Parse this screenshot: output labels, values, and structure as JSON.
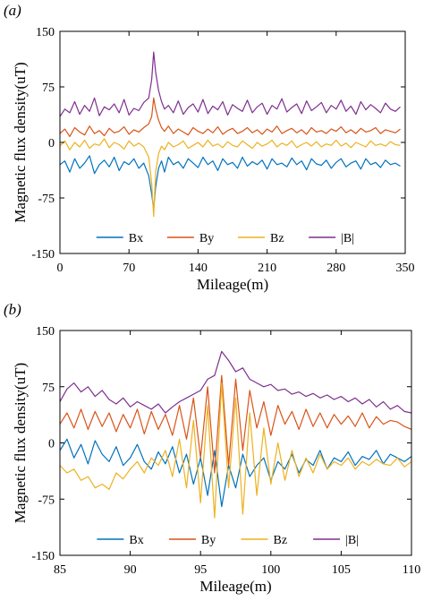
{
  "chart_data": [
    {
      "type": "line",
      "panel_label": "(a)",
      "xlabel": "Mileage(m)",
      "ylabel": "Magnetic flux density(uT)",
      "xlim": [
        0,
        350
      ],
      "ylim": [
        -150,
        150
      ],
      "xticks": [
        0,
        70,
        140,
        210,
        280,
        350
      ],
      "yticks": [
        150,
        75,
        0,
        -75,
        -150
      ],
      "grid": false,
      "legend_position": "bottom-center",
      "series": [
        {
          "name": "Bx",
          "color": "#0072BD",
          "x": [
            0,
            5,
            10,
            15,
            20,
            25,
            30,
            35,
            40,
            45,
            50,
            55,
            60,
            65,
            70,
            75,
            80,
            85,
            90,
            93,
            95,
            97,
            100,
            103,
            106,
            110,
            115,
            120,
            125,
            130,
            135,
            140,
            145,
            150,
            155,
            160,
            165,
            170,
            175,
            180,
            185,
            190,
            195,
            200,
            205,
            210,
            215,
            220,
            225,
            230,
            235,
            240,
            245,
            250,
            255,
            260,
            265,
            270,
            275,
            280,
            285,
            290,
            295,
            300,
            305,
            310,
            315,
            320,
            325,
            330,
            335,
            340,
            345
          ],
          "y": [
            -30,
            -25,
            -40,
            -22,
            -35,
            -28,
            -18,
            -42,
            -30,
            -24,
            -33,
            -20,
            -38,
            -26,
            -30,
            -22,
            -35,
            -28,
            -45,
            -70,
            -90,
            -60,
            -35,
            -25,
            -40,
            -20,
            -30,
            -26,
            -35,
            -22,
            -28,
            -34,
            -20,
            -30,
            -25,
            -38,
            -22,
            -30,
            -27,
            -35,
            -20,
            -32,
            -26,
            -30,
            -24,
            -36,
            -22,
            -30,
            -28,
            -33,
            -21,
            -30,
            -25,
            -37,
            -22,
            -29,
            -31,
            -24,
            -35,
            -27,
            -22,
            -33,
            -28,
            -25,
            -36,
            -22,
            -30,
            -27,
            -34,
            -24,
            -30,
            -28,
            -32
          ]
        },
        {
          "name": "By",
          "color": "#D95319",
          "x": [
            0,
            5,
            10,
            15,
            20,
            25,
            30,
            35,
            40,
            45,
            50,
            55,
            60,
            65,
            70,
            75,
            80,
            85,
            90,
            93,
            95,
            97,
            100,
            103,
            106,
            110,
            115,
            120,
            125,
            130,
            135,
            140,
            145,
            150,
            155,
            160,
            165,
            170,
            175,
            180,
            185,
            190,
            195,
            200,
            205,
            210,
            215,
            220,
            225,
            230,
            235,
            240,
            245,
            250,
            255,
            260,
            265,
            270,
            275,
            280,
            285,
            290,
            295,
            300,
            305,
            310,
            315,
            320,
            325,
            330,
            335,
            340,
            345
          ],
          "y": [
            12,
            18,
            8,
            20,
            14,
            10,
            22,
            12,
            16,
            9,
            19,
            13,
            15,
            21,
            11,
            17,
            14,
            20,
            25,
            35,
            60,
            45,
            30,
            20,
            15,
            22,
            12,
            18,
            14,
            10,
            20,
            15,
            12,
            18,
            13,
            21,
            11,
            16,
            19,
            12,
            15,
            20,
            13,
            17,
            11,
            18,
            14,
            22,
            12,
            16,
            19,
            13,
            17,
            11,
            20,
            14,
            16,
            12,
            18,
            15,
            21,
            13,
            17,
            12,
            19,
            14,
            16,
            20,
            12,
            17,
            15,
            13,
            18
          ]
        },
        {
          "name": "Bz",
          "color": "#EDB120",
          "x": [
            0,
            5,
            10,
            15,
            20,
            25,
            30,
            35,
            40,
            45,
            50,
            55,
            60,
            65,
            70,
            75,
            80,
            85,
            90,
            93,
            95,
            97,
            100,
            103,
            106,
            110,
            115,
            120,
            125,
            130,
            135,
            140,
            145,
            150,
            155,
            160,
            165,
            170,
            175,
            180,
            185,
            190,
            195,
            200,
            205,
            210,
            215,
            220,
            225,
            230,
            235,
            240,
            245,
            250,
            255,
            260,
            265,
            270,
            275,
            280,
            285,
            290,
            295,
            300,
            305,
            310,
            315,
            320,
            325,
            330,
            335,
            340,
            345
          ],
          "y": [
            -5,
            2,
            -10,
            0,
            -6,
            3,
            -8,
            -2,
            -4,
            5,
            -7,
            0,
            -3,
            -9,
            2,
            -5,
            -1,
            -6,
            -20,
            -55,
            -100,
            -40,
            -15,
            -5,
            -10,
            0,
            -6,
            -3,
            2,
            -8,
            -4,
            0,
            -6,
            3,
            -5,
            -2,
            -7,
            1,
            -4,
            -6,
            2,
            -3,
            -8,
            0,
            -5,
            -2,
            3,
            -6,
            -1,
            -4,
            2,
            -7,
            -3,
            0,
            -5,
            1,
            -6,
            -2,
            -4,
            3,
            -5,
            -1,
            -7,
            0,
            -3,
            -6,
            2,
            -4,
            -2,
            -5,
            1,
            -3,
            -4
          ]
        },
        {
          "name": "|B|",
          "color": "#7E2F8E",
          "x": [
            0,
            5,
            10,
            15,
            20,
            25,
            30,
            35,
            40,
            45,
            50,
            55,
            60,
            65,
            70,
            75,
            80,
            85,
            90,
            93,
            95,
            97,
            100,
            103,
            106,
            110,
            115,
            120,
            125,
            130,
            135,
            140,
            145,
            150,
            155,
            160,
            165,
            170,
            175,
            180,
            185,
            190,
            195,
            200,
            205,
            210,
            215,
            220,
            225,
            230,
            235,
            240,
            245,
            250,
            255,
            260,
            265,
            270,
            275,
            280,
            285,
            290,
            295,
            300,
            305,
            310,
            315,
            320,
            325,
            330,
            335,
            340,
            345
          ],
          "y": [
            35,
            45,
            40,
            55,
            38,
            50,
            42,
            60,
            36,
            48,
            44,
            52,
            40,
            58,
            37,
            46,
            43,
            54,
            60,
            85,
            122,
            95,
            70,
            55,
            45,
            50,
            40,
            56,
            38,
            47,
            52,
            41,
            58,
            39,
            49,
            44,
            55,
            37,
            51,
            46,
            42,
            57,
            40,
            48,
            53,
            38,
            50,
            45,
            59,
            41,
            47,
            52,
            39,
            56,
            43,
            48,
            54,
            40,
            50,
            45,
            57,
            42,
            49,
            38,
            55,
            44,
            51,
            46,
            40,
            53,
            45,
            42,
            48
          ]
        }
      ]
    },
    {
      "type": "line",
      "panel_label": "(b)",
      "xlabel": "Mileage(m)",
      "ylabel": "Magnetic flux density(uT)",
      "xlim": [
        85,
        110
      ],
      "ylim": [
        -150,
        150
      ],
      "xticks": [
        85,
        90,
        95,
        100,
        105,
        110
      ],
      "yticks": [
        150,
        75,
        0,
        -75,
        -150
      ],
      "grid": false,
      "legend_position": "bottom-center",
      "series": [
        {
          "name": "Bx",
          "color": "#0072BD",
          "x": [
            85,
            85.5,
            86,
            86.5,
            87,
            87.5,
            88,
            88.5,
            89,
            89.5,
            90,
            90.5,
            91,
            91.5,
            92,
            92.5,
            93,
            93.5,
            94,
            94.5,
            95,
            95.5,
            96,
            96.5,
            97,
            97.5,
            98,
            98.5,
            99,
            99.5,
            100,
            100.5,
            101,
            101.5,
            102,
            102.5,
            103,
            103.5,
            104,
            104.5,
            105,
            105.5,
            106,
            106.5,
            107,
            107.5,
            108,
            108.5,
            109,
            109.5,
            110
          ],
          "y": [
            -10,
            5,
            -20,
            -2,
            -28,
            3,
            -15,
            -25,
            -5,
            -30,
            -20,
            -2,
            -25,
            -35,
            -12,
            -28,
            -5,
            -40,
            -15,
            -55,
            -20,
            -70,
            -10,
            -85,
            -30,
            -60,
            -15,
            -45,
            -30,
            -20,
            -50,
            -25,
            -35,
            -15,
            -40,
            -22,
            -30,
            -10,
            -35,
            -20,
            -25,
            -12,
            -30,
            -18,
            -22,
            -10,
            -28,
            -15,
            -20,
            -25,
            -18
          ]
        },
        {
          "name": "By",
          "color": "#D95319",
          "x": [
            85,
            85.5,
            86,
            86.5,
            87,
            87.5,
            88,
            88.5,
            89,
            89.5,
            90,
            90.5,
            91,
            91.5,
            92,
            92.5,
            93,
            93.5,
            94,
            94.5,
            95,
            95.5,
            96,
            96.5,
            97,
            97.5,
            98,
            98.5,
            99,
            99.5,
            100,
            100.5,
            101,
            101.5,
            102,
            102.5,
            103,
            103.5,
            104,
            104.5,
            105,
            105.5,
            106,
            106.5,
            107,
            107.5,
            108,
            108.5,
            109,
            109.5,
            110
          ],
          "y": [
            25,
            40,
            20,
            45,
            18,
            42,
            22,
            40,
            15,
            38,
            20,
            45,
            12,
            42,
            18,
            38,
            10,
            50,
            5,
            60,
            -20,
            75,
            -40,
            90,
            -30,
            85,
            -10,
            70,
            20,
            55,
            10,
            50,
            25,
            42,
            18,
            45,
            22,
            40,
            20,
            38,
            25,
            36,
            22,
            40,
            20,
            35,
            25,
            30,
            28,
            22,
            18
          ]
        },
        {
          "name": "Bz",
          "color": "#EDB120",
          "x": [
            85,
            85.5,
            86,
            86.5,
            87,
            87.5,
            88,
            88.5,
            89,
            89.5,
            90,
            90.5,
            91,
            91.5,
            92,
            92.5,
            93,
            93.5,
            94,
            94.5,
            95,
            95.5,
            96,
            96.5,
            97,
            97.5,
            98,
            98.5,
            99,
            99.5,
            100,
            100.5,
            101,
            101.5,
            102,
            102.5,
            103,
            103.5,
            104,
            104.5,
            105,
            105.5,
            106,
            106.5,
            107,
            107.5,
            108,
            108.5,
            109,
            109.5,
            110
          ],
          "y": [
            -30,
            -40,
            -35,
            -50,
            -45,
            -60,
            -55,
            -62,
            -40,
            -48,
            -35,
            -25,
            -40,
            -20,
            -30,
            -10,
            -45,
            5,
            -60,
            30,
            -80,
            50,
            -100,
            80,
            -60,
            60,
            -95,
            40,
            -70,
            20,
            -55,
            0,
            -50,
            -10,
            -45,
            -20,
            -40,
            -15,
            -35,
            -25,
            -30,
            -20,
            -35,
            -25,
            -30,
            -22,
            -28,
            -30,
            -20,
            -32,
            -25
          ]
        },
        {
          "name": "|B|",
          "color": "#7E2F8E",
          "x": [
            85,
            85.5,
            86,
            86.5,
            87,
            87.5,
            88,
            88.5,
            89,
            89.5,
            90,
            90.5,
            91,
            91.5,
            92,
            92.5,
            93,
            93.5,
            94,
            94.5,
            95,
            95.5,
            96,
            96.5,
            97,
            97.5,
            98,
            98.5,
            99,
            99.5,
            100,
            100.5,
            101,
            101.5,
            102,
            102.5,
            103,
            103.5,
            104,
            104.5,
            105,
            105.5,
            106,
            106.5,
            107,
            107.5,
            108,
            108.5,
            109,
            109.5,
            110
          ],
          "y": [
            55,
            72,
            80,
            68,
            75,
            62,
            70,
            58,
            52,
            60,
            48,
            55,
            50,
            45,
            52,
            40,
            48,
            55,
            60,
            65,
            70,
            85,
            90,
            122,
            110,
            95,
            100,
            85,
            80,
            75,
            78,
            70,
            72,
            65,
            68,
            62,
            66,
            60,
            64,
            58,
            62,
            55,
            60,
            52,
            58,
            48,
            55,
            45,
            50,
            42,
            40
          ]
        }
      ]
    }
  ]
}
